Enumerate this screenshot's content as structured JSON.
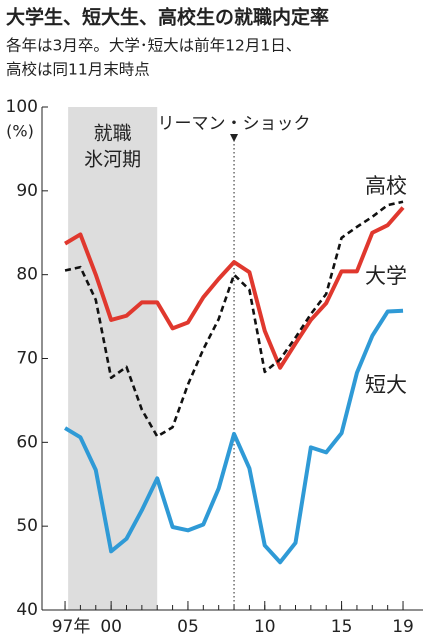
{
  "chart_data": {
    "type": "line",
    "title": "大学生、短大生、高校生の就職内定率",
    "subtitle": [
      "各年は3月卒。大学･短大は前年12月1日、",
      "高校は同11月末時点"
    ],
    "y_label": "(%)",
    "x": [
      1997,
      1998,
      1999,
      2000,
      2001,
      2002,
      2003,
      2004,
      2005,
      2006,
      2007,
      2008,
      2009,
      2010,
      2011,
      2012,
      2013,
      2014,
      2015,
      2016,
      2017,
      2018,
      2019
    ],
    "series": [
      {
        "name": "高校",
        "color": "#e0382e",
        "dash": false,
        "values": [
          83.7,
          84.8,
          80.0,
          74.6,
          75.1,
          76.7,
          76.7,
          73.6,
          74.3,
          77.3,
          79.5,
          81.5,
          80.3,
          73.3,
          68.9,
          71.8,
          74.6,
          76.6,
          80.4,
          80.4,
          85.0,
          85.9,
          88.0
        ]
      },
      {
        "name": "大学",
        "color": "#111111",
        "dash": true,
        "values": [
          80.5,
          80.9,
          77.0,
          67.7,
          69.0,
          63.9,
          60.7,
          61.8,
          66.9,
          71.1,
          74.7,
          80.0,
          78.2,
          68.4,
          69.9,
          72.5,
          75.3,
          77.7,
          84.4,
          85.7,
          86.9,
          88.3,
          88.7
        ]
      },
      {
        "name": "短大",
        "color": "#2f9ad6",
        "dash": false,
        "values": [
          61.7,
          60.6,
          56.7,
          47.0,
          48.5,
          51.9,
          55.7,
          49.9,
          49.5,
          50.2,
          54.5,
          61.0,
          56.9,
          47.7,
          45.7,
          48.0,
          59.4,
          58.8,
          61.1,
          68.3,
          72.7,
          75.6,
          75.7
        ]
      }
    ],
    "xlim": [
      1995.5,
      2020.3
    ],
    "xticks": [
      {
        "value": 1997,
        "label": "97年"
      },
      {
        "value": 2000,
        "label": "00"
      },
      {
        "value": 2005,
        "label": "05"
      },
      {
        "value": 2010,
        "label": "10"
      },
      {
        "value": 2015,
        "label": "15"
      },
      {
        "value": 2019,
        "label": "19"
      }
    ],
    "ylim": [
      40,
      100
    ],
    "yticks": [
      40,
      50,
      60,
      70,
      80,
      90,
      100
    ],
    "grid": false,
    "shaded_span": {
      "x": [
        1997.2,
        2003.0
      ],
      "label": [
        "就職",
        "氷河期"
      ],
      "color": "#dddddd"
    },
    "event_line": {
      "x": 2008,
      "label": "リーマン・ショック"
    }
  }
}
